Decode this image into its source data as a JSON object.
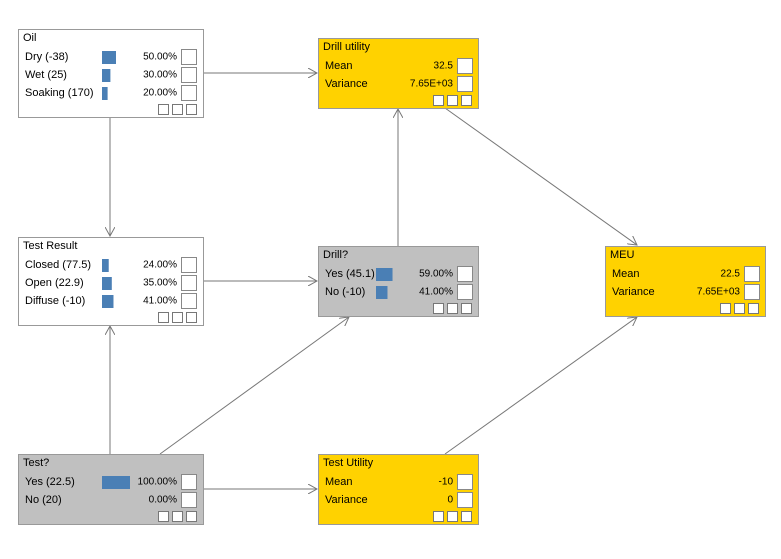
{
  "nodes": [
    {
      "title": "Oil",
      "kind": "chance",
      "rows": [
        {
          "label": "Dry (-38)",
          "value": 50,
          "value_label": "50.00%"
        },
        {
          "label": "Wet (25)",
          "value": 30,
          "value_label": "30.00%"
        },
        {
          "label": "Soaking (170)",
          "value": 20,
          "value_label": "20.00%"
        }
      ]
    },
    {
      "title": "Drill utility",
      "kind": "utility",
      "rows": [
        {
          "label": "Mean",
          "value_label": "32.5"
        },
        {
          "label": "Variance",
          "value_label": "7.65E+03"
        }
      ]
    },
    {
      "title": "Test Result",
      "kind": "chance",
      "rows": [
        {
          "label": "Closed (77.5)",
          "value": 24,
          "value_label": "24.00%"
        },
        {
          "label": "Open (22.9)",
          "value": 35,
          "value_label": "35.00%"
        },
        {
          "label": "Diffuse (-10)",
          "value": 41,
          "value_label": "41.00%"
        }
      ]
    },
    {
      "title": "Drill?",
      "kind": "decision",
      "rows": [
        {
          "label": "Yes (45.1)",
          "value": 59,
          "value_label": "59.00%"
        },
        {
          "label": "No (-10)",
          "value": 41,
          "value_label": "41.00%"
        }
      ]
    },
    {
      "title": "MEU",
      "kind": "utility",
      "rows": [
        {
          "label": "Mean",
          "value_label": "22.5"
        },
        {
          "label": "Variance",
          "value_label": "7.65E+03"
        }
      ]
    },
    {
      "title": "Test?",
      "kind": "decision",
      "rows": [
        {
          "label": "Yes (22.5)",
          "value": 100,
          "value_label": "100.00%"
        },
        {
          "label": "No (20)",
          "value": 0,
          "value_label": "0.00%"
        }
      ]
    },
    {
      "title": "Test Utility",
      "kind": "utility",
      "rows": [
        {
          "label": "Mean",
          "value_label": "-10"
        },
        {
          "label": "Variance",
          "value_label": "0"
        }
      ]
    }
  ]
}
